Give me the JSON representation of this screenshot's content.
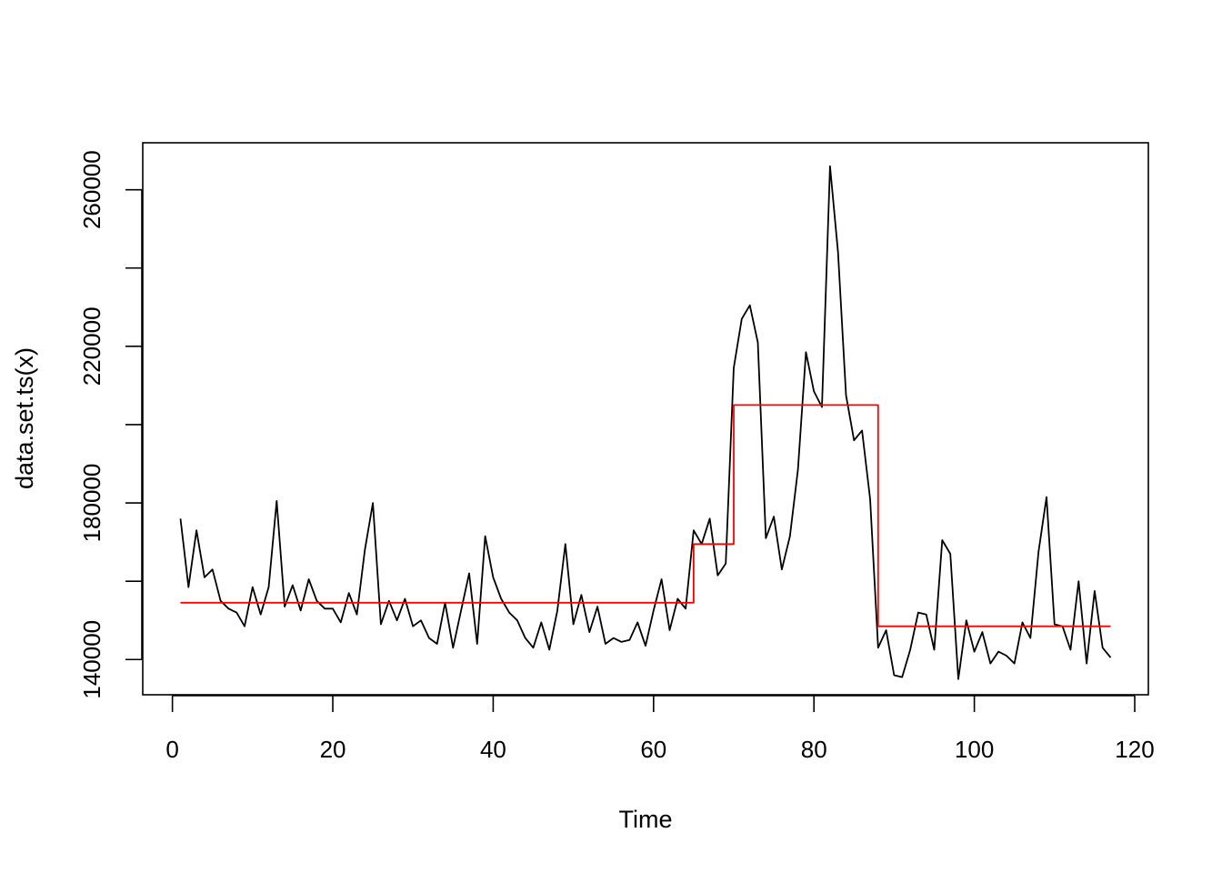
{
  "chart_data": {
    "type": "line",
    "title": "",
    "xlabel": "Time",
    "ylabel": "data.set.ts(x)",
    "xlim": [
      -3.7,
      121.7
    ],
    "ylim": [
      131000,
      272000
    ],
    "x_ticks": [
      "0",
      "20",
      "40",
      "60",
      "80",
      "100",
      "120"
    ],
    "x_tick_values": [
      0,
      20,
      40,
      60,
      80,
      100,
      120
    ],
    "y_ticks": [
      "140000",
      "180000",
      "220000",
      "260000"
    ],
    "y_tick_values": [
      140000,
      160000,
      180000,
      200000,
      220000,
      240000,
      260000
    ],
    "y_tick_labels_shown": [
      140000,
      180000,
      220000,
      260000
    ],
    "grid": false,
    "legend": "none",
    "series": [
      {
        "color": "#000000",
        "x": [
          1,
          2,
          3,
          4,
          5,
          6,
          7,
          8,
          9,
          10,
          11,
          12,
          13,
          14,
          15,
          16,
          17,
          18,
          19,
          20,
          21,
          22,
          23,
          24,
          25,
          26,
          27,
          28,
          29,
          30,
          31,
          32,
          33,
          34,
          35,
          36,
          37,
          38,
          39,
          40,
          41,
          42,
          43,
          44,
          45,
          46,
          47,
          48,
          49,
          50,
          51,
          52,
          53,
          54,
          55,
          56,
          57,
          58,
          59,
          60,
          61,
          62,
          63,
          64,
          65,
          66,
          67,
          68,
          69,
          70,
          71,
          72,
          73,
          74,
          75,
          76,
          77,
          78,
          79,
          80,
          81,
          82,
          83,
          84,
          85,
          86,
          87,
          88,
          89,
          90,
          91,
          92,
          93,
          94,
          95,
          96,
          97,
          98,
          99,
          100,
          101,
          102,
          103,
          104,
          105,
          106,
          107,
          108,
          109,
          110,
          111,
          112,
          113,
          114,
          115,
          116,
          117
        ],
        "values": [
          176000,
          158500,
          173000,
          161000,
          163000,
          155000,
          153000,
          152000,
          148500,
          158500,
          151500,
          158500,
          180500,
          153500,
          159000,
          152500,
          160500,
          155000,
          153000,
          153000,
          149500,
          157000,
          151500,
          168000,
          180000,
          149000,
          155000,
          150000,
          155500,
          148500,
          150000,
          145500,
          144000,
          154500,
          143000,
          152500,
          162000,
          144000,
          171500,
          161000,
          155500,
          152000,
          150000,
          145500,
          143000,
          149500,
          142500,
          152500,
          169500,
          149000,
          156500,
          147000,
          153500,
          144000,
          145500,
          144500,
          145000,
          149500,
          143500,
          152500,
          160500,
          147500,
          155500,
          153000,
          173000,
          169500,
          176000,
          161500,
          164500,
          214500,
          227000,
          230500,
          221000,
          171000,
          176500,
          163000,
          171500,
          188500,
          218500,
          208500,
          204500,
          266000,
          244000,
          207500,
          196000,
          198500,
          181000,
          143000,
          147500,
          136000,
          135500,
          142500,
          152000,
          151500,
          142500,
          170500,
          167000,
          135000,
          150000,
          142000,
          147000,
          139000,
          142000,
          141000,
          139000,
          149500,
          145500,
          167500,
          181500,
          149000,
          148500,
          142500,
          160000,
          139000,
          157500,
          143000,
          140500
        ]
      },
      {
        "color": "#ff0000",
        "x": [
          1,
          65,
          65,
          70,
          70,
          88,
          88,
          117
        ],
        "values": [
          154500,
          154500,
          169500,
          169500,
          205000,
          205000,
          148500,
          148500
        ]
      }
    ]
  }
}
